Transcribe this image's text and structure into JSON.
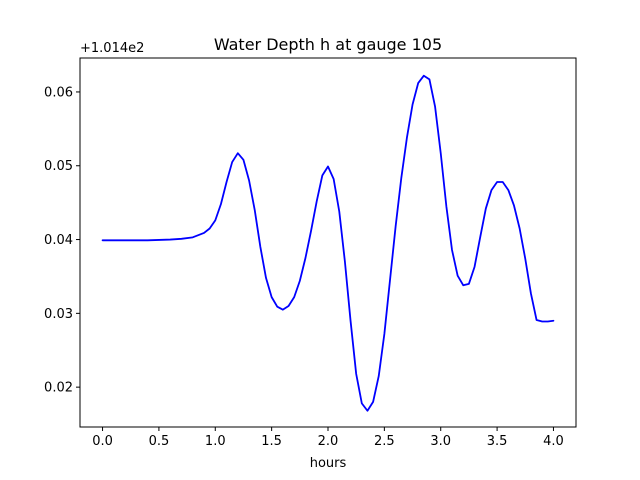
{
  "chart_data": {
    "type": "line",
    "title": "Water Depth h at gauge 105",
    "xlabel": "hours",
    "ylabel": "",
    "y_offset_label": "+1.014e2",
    "xlim": [
      -0.2,
      4.2
    ],
    "ylim": [
      0.0146,
      0.0646
    ],
    "x_ticks": [
      0.0,
      0.5,
      1.0,
      1.5,
      2.0,
      2.5,
      3.0,
      3.5,
      4.0
    ],
    "x_tick_labels": [
      "0.0",
      "0.5",
      "1.0",
      "1.5",
      "2.0",
      "2.5",
      "3.0",
      "3.5",
      "4.0"
    ],
    "y_ticks": [
      0.02,
      0.03,
      0.04,
      0.05,
      0.06
    ],
    "y_tick_labels": [
      "0.02",
      "0.03",
      "0.04",
      "0.05",
      "0.06"
    ],
    "grid": false,
    "series": [
      {
        "color": "#0000ff",
        "x": [
          0.0,
          0.2,
          0.4,
          0.6,
          0.7,
          0.8,
          0.9,
          0.95,
          1.0,
          1.05,
          1.1,
          1.15,
          1.2,
          1.25,
          1.3,
          1.35,
          1.4,
          1.45,
          1.5,
          1.55,
          1.6,
          1.65,
          1.7,
          1.75,
          1.8,
          1.85,
          1.9,
          1.95,
          2.0,
          2.05,
          2.1,
          2.15,
          2.2,
          2.25,
          2.3,
          2.35,
          2.4,
          2.45,
          2.5,
          2.55,
          2.6,
          2.65,
          2.7,
          2.75,
          2.8,
          2.85,
          2.9,
          2.95,
          3.0,
          3.05,
          3.1,
          3.15,
          3.2,
          3.25,
          3.3,
          3.35,
          3.4,
          3.45,
          3.5,
          3.55,
          3.6,
          3.65,
          3.7,
          3.75,
          3.8,
          3.85,
          3.9,
          3.95,
          4.0
        ],
        "y": [
          0.0399,
          0.0399,
          0.0399,
          0.04,
          0.0401,
          0.0403,
          0.0409,
          0.0415,
          0.0426,
          0.0448,
          0.0478,
          0.0505,
          0.0517,
          0.0508,
          0.048,
          0.044,
          0.039,
          0.0348,
          0.0322,
          0.0309,
          0.0305,
          0.031,
          0.0322,
          0.0344,
          0.0375,
          0.0412,
          0.0452,
          0.0487,
          0.0499,
          0.0482,
          0.0438,
          0.037,
          0.029,
          0.0218,
          0.0178,
          0.0168,
          0.018,
          0.0215,
          0.0272,
          0.0345,
          0.0418,
          0.0483,
          0.0538,
          0.0583,
          0.0612,
          0.0622,
          0.0617,
          0.058,
          0.0517,
          0.0445,
          0.0386,
          0.0351,
          0.0338,
          0.034,
          0.0363,
          0.0403,
          0.0442,
          0.0467,
          0.0478,
          0.0478,
          0.0467,
          0.0446,
          0.0415,
          0.0374,
          0.0327,
          0.0291,
          0.0289,
          0.0289,
          0.029
        ]
      }
    ]
  }
}
